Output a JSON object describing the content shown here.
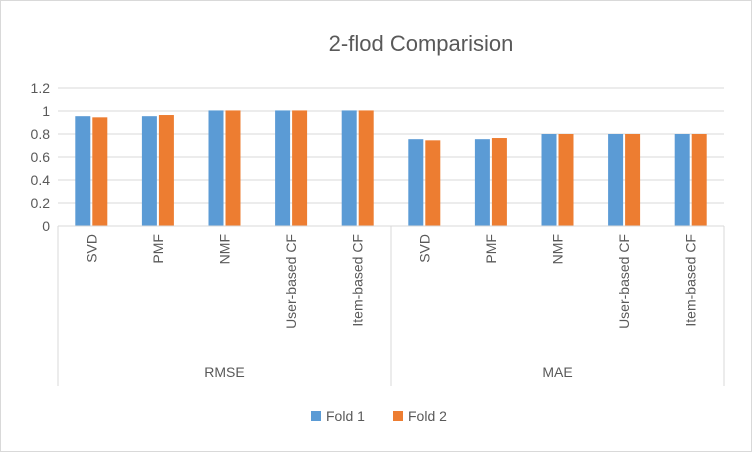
{
  "chart_data": {
    "type": "bar",
    "title": "2-flod Comparision",
    "xlabel": "",
    "ylabel": "",
    "ylim": [
      0,
      1.2
    ],
    "yticks": [
      "0",
      "0.2",
      "0.4",
      "0.6",
      "0.8",
      "1",
      "1.2"
    ],
    "grid": true,
    "legend_position": "bottom",
    "groups": [
      {
        "label": "RMSE",
        "categories": [
          "SVD",
          "PMF",
          "NMF",
          "User-based CF",
          "Item-based CF"
        ]
      },
      {
        "label": "MAE",
        "categories": [
          "SVD",
          "PMF",
          "NMF",
          "User-based CF",
          "Item-based CF"
        ]
      }
    ],
    "series": [
      {
        "name": "Fold 1",
        "color": "#5b9bd5",
        "values": [
          0.955,
          0.955,
          1.005,
          1.005,
          1.005,
          0.755,
          0.755,
          0.8,
          0.8,
          0.8
        ]
      },
      {
        "name": "Fold 2",
        "color": "#ed7d31",
        "values": [
          0.945,
          0.965,
          1.005,
          1.005,
          1.005,
          0.745,
          0.765,
          0.8,
          0.8,
          0.8
        ]
      }
    ]
  }
}
